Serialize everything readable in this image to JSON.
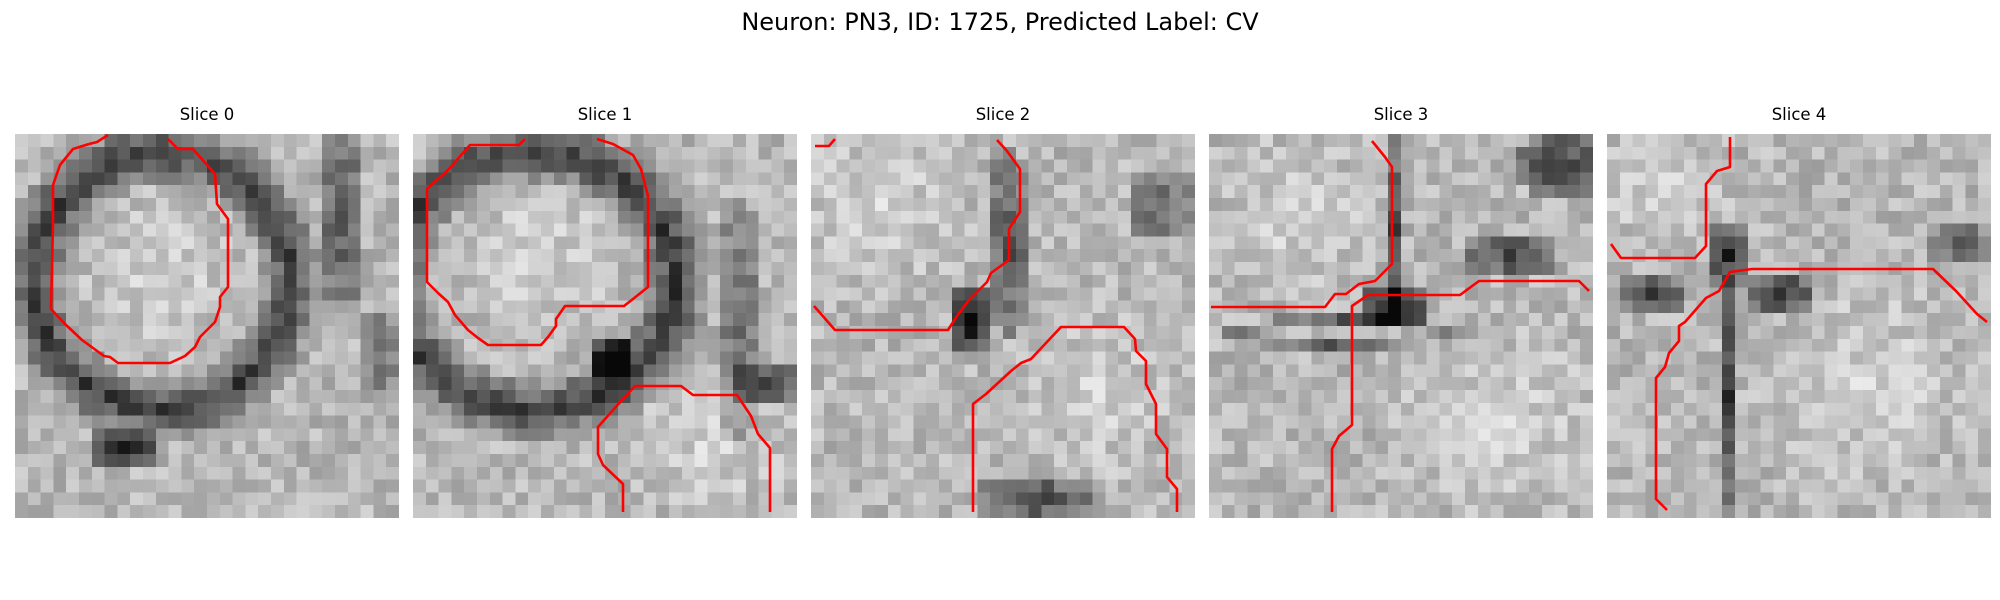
{
  "figure": {
    "title": "Neuron: PN3, ID: 1725, Predicted Label: CV"
  },
  "panels": [
    {
      "title": "Slice 0"
    },
    {
      "title": "Slice 1"
    },
    {
      "title": "Slice 2"
    },
    {
      "title": "Slice 3"
    },
    {
      "title": "Slice 4"
    }
  ],
  "colors": {
    "contour": "#ff0000",
    "background": "#ffffff"
  },
  "colormap": "gray"
}
